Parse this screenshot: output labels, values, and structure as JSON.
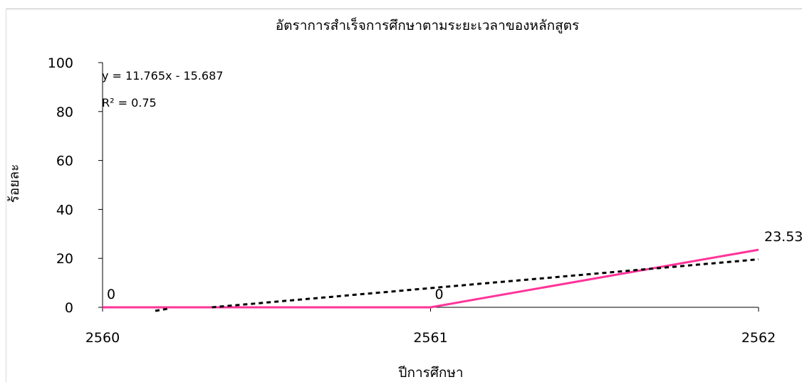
{
  "chart_data": {
    "type": "line",
    "title": "อัตราการสำเร็จการศึกษาตามระยะเวลาของหลักสูตร",
    "xlabel": "ปีการศึกษา",
    "ylabel": "ร้อยละ",
    "categories": [
      "2560",
      "2561",
      "2562"
    ],
    "series": [
      {
        "values": [
          0,
          0,
          23.53
        ],
        "color": "#ff3399",
        "data_labels": [
          "0",
          "0",
          "23.53"
        ]
      }
    ],
    "trendline": {
      "type": "linear",
      "slope": 11.765,
      "intercept": -15.687,
      "equation": "y = 11.765x - 15.687",
      "r_squared": "R² = 0.75",
      "style": "dotted",
      "color": "#000000"
    },
    "ylim": [
      0,
      100
    ],
    "yticks": [
      "0",
      "20",
      "40",
      "60",
      "80",
      "100"
    ],
    "grid": false,
    "legend": "none"
  }
}
